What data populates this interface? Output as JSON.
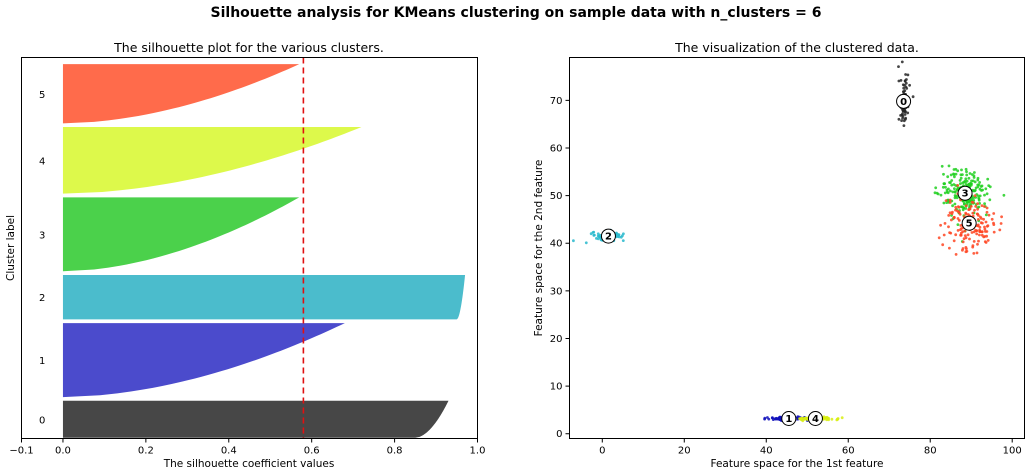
{
  "figure": {
    "suptitle": "Silhouette analysis for KMeans clustering on sample data with n_clusters = 6"
  },
  "chart_data": [
    {
      "type": "area",
      "title": "The silhouette plot for the various clusters.",
      "xlabel": "The silhouette coefficient values",
      "ylabel": "Cluster label",
      "xlim": [
        -0.1,
        1.0
      ],
      "xticks": [
        "−0.1",
        "0.0",
        "0.2",
        "0.4",
        "0.6",
        "0.8",
        "1.0"
      ],
      "grid": false,
      "average_silhouette_score": 0.58,
      "clusters": [
        {
          "label": "0",
          "color": "#474747",
          "max_value": 0.93,
          "min_value": 0.85,
          "size": 100
        },
        {
          "label": "1",
          "color": "#4b4bcc",
          "max_value": 0.68,
          "min_value": 0.0,
          "size": 200
        },
        {
          "label": "2",
          "color": "#4bbccc",
          "max_value": 0.97,
          "min_value": 0.95,
          "size": 120
        },
        {
          "label": "3",
          "color": "#4bd14b",
          "max_value": 0.57,
          "min_value": 0.0,
          "size": 200
        },
        {
          "label": "4",
          "color": "#ddf94b",
          "max_value": 0.72,
          "min_value": 0.0,
          "size": 180
        },
        {
          "label": "5",
          "color": "#ff6b4b",
          "max_value": 0.57,
          "min_value": 0.0,
          "size": 160
        }
      ]
    },
    {
      "type": "scatter",
      "title": "The visualization of the clustered data.",
      "xlabel": "Feature space for the 1st feature",
      "ylabel": "Feature space for the 2nd feature",
      "xlim": [
        -8,
        103
      ],
      "ylim": [
        -1,
        79
      ],
      "xticks": [
        0,
        20,
        40,
        60,
        80,
        100
      ],
      "yticks": [
        0,
        10,
        20,
        30,
        40,
        50,
        60,
        70
      ],
      "grid": false,
      "clusters": [
        {
          "label": "0",
          "color": "#262626",
          "center": [
            73.5,
            69.8
          ],
          "spread": [
            0.6,
            2.5
          ],
          "n": 90
        },
        {
          "label": "1",
          "color": "#1010bb",
          "center": [
            45.5,
            3.2
          ],
          "spread": [
            2.6,
            0.18
          ],
          "n": 120
        },
        {
          "label": "2",
          "color": "#28b8cc",
          "center": [
            1.5,
            41.5
          ],
          "spread": [
            2.0,
            0.4
          ],
          "n": 70
        },
        {
          "label": "3",
          "color": "#20d020",
          "center": [
            88.5,
            50.5
          ],
          "spread": [
            3.0,
            2.5
          ],
          "n": 220
        },
        {
          "label": "4",
          "color": "#d8ee10",
          "center": [
            52.0,
            3.2
          ],
          "spread": [
            2.4,
            0.18
          ],
          "n": 100
        },
        {
          "label": "5",
          "color": "#ff4522",
          "center": [
            89.5,
            44.2
          ],
          "spread": [
            3.0,
            2.8
          ],
          "n": 160
        }
      ]
    }
  ]
}
